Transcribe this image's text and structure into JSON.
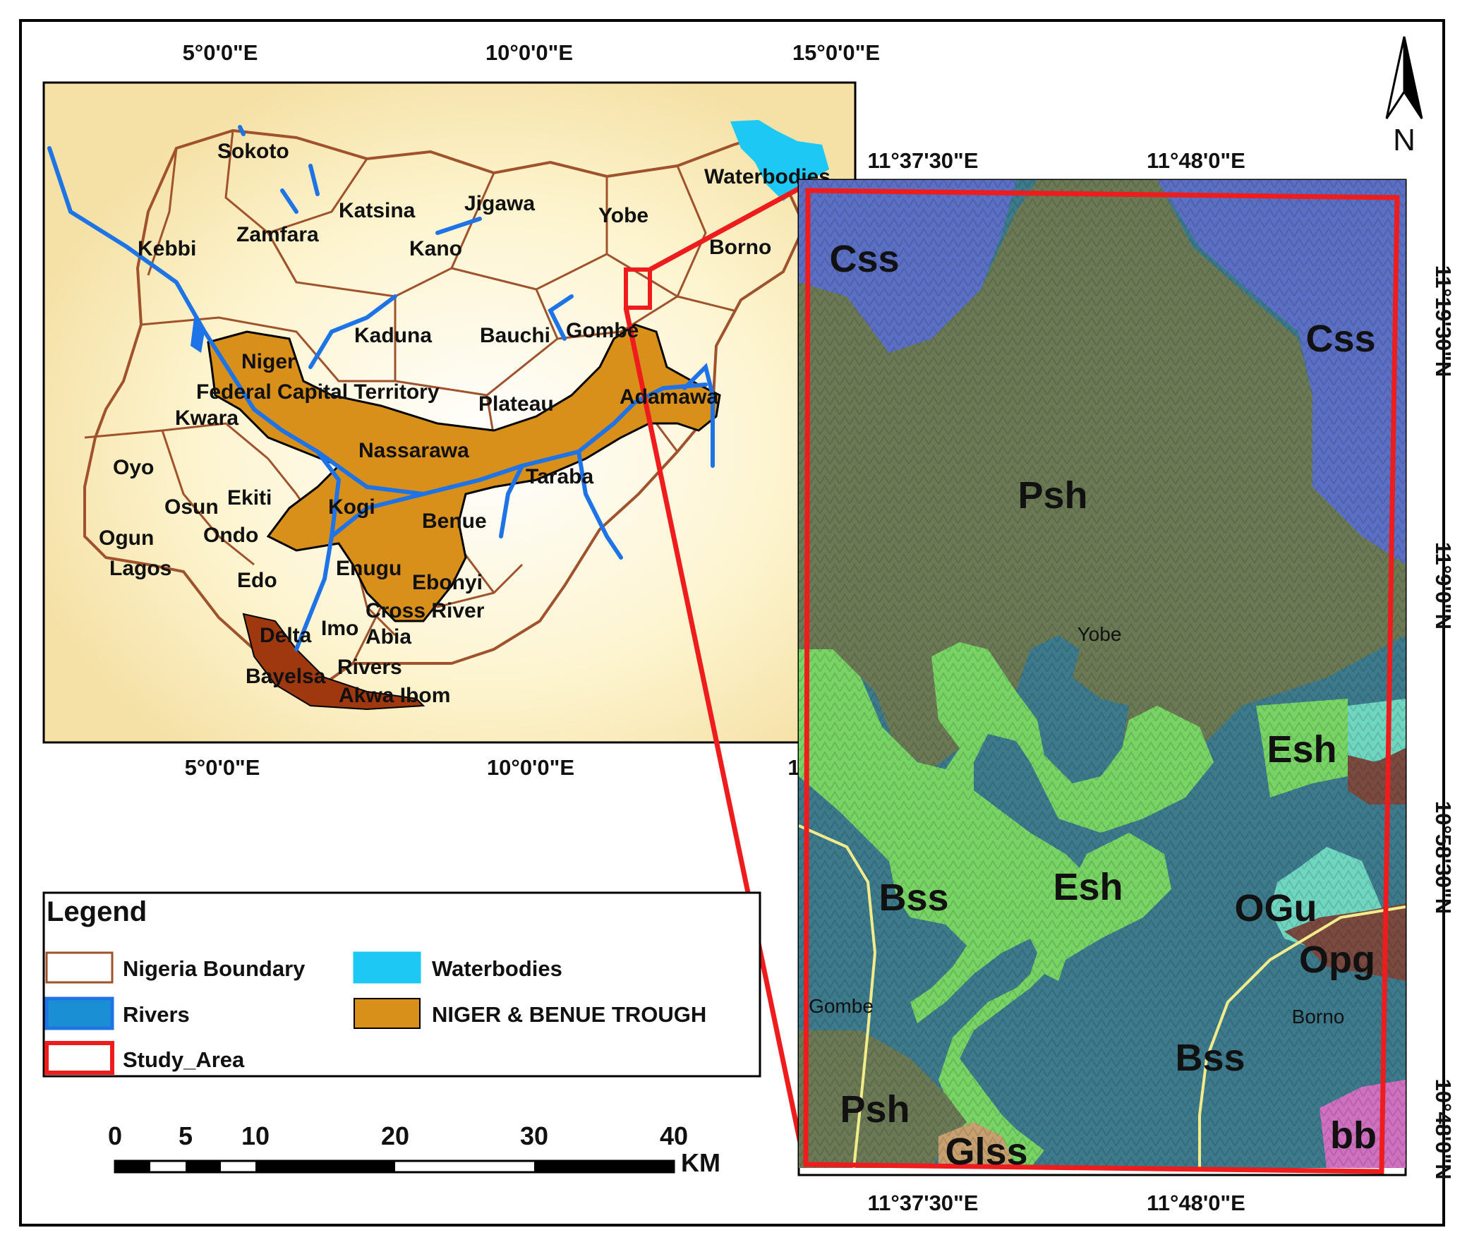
{
  "inset_map": {
    "top_ticks": [
      "5°0'0\"E",
      "10°0'0\"E",
      "15°0'0\"E"
    ],
    "bottom_ticks": [
      "5°0'0\"E",
      "10°0'0\"E",
      "1"
    ],
    "states": [
      "Sokoto",
      "Katsina",
      "Jigawa",
      "Yobe",
      "Waterbodies",
      "Kebbi",
      "Zamfara",
      "Kano",
      "Borno",
      "Kaduna",
      "Bauchi",
      "Gombe",
      "Niger",
      "Federal Capital Territory",
      "Plateau",
      "Adamawa",
      "Kwara",
      "Nassarawa",
      "Oyo",
      "Taraba",
      "Osun",
      "Ekiti",
      "Kogi",
      "Benue",
      "Ogun",
      "Ondo",
      "Lagos",
      "Edo",
      "Enugu",
      "Ebonyi",
      "Cross River",
      "Delta",
      "Imo",
      "Abia",
      "Rivers",
      "Bayelsa",
      "Akwa Ibom"
    ]
  },
  "north_arrow": {
    "label": "N"
  },
  "study_map": {
    "top_ticks": [
      "11°37'30\"E",
      "11°48'0\"E"
    ],
    "bottom_ticks": [
      "11°37'30\"E",
      "11°48'0\"E"
    ],
    "right_ticks": [
      "11°19'30\"N",
      "11°9'0\"N",
      "10°58'30\"N",
      "10°48'0\"N"
    ],
    "units": [
      "Css",
      "Css",
      "Psh",
      "Esh",
      "Esh",
      "Bss",
      "Bss",
      "OGu",
      "Opg",
      "Psh",
      "Glss",
      "bb"
    ],
    "place_labels": [
      "Yobe",
      "Gombe",
      "Borno"
    ]
  },
  "legend": {
    "title": "Legend",
    "items": [
      "Nigeria Boundary",
      "Waterbodies",
      "Rivers",
      "NIGER & BENUE TROUGH",
      "Study_Area"
    ]
  },
  "scale_bar": {
    "labels": [
      "0",
      "5",
      "10",
      "20",
      "30",
      "40"
    ],
    "unit": "KM"
  },
  "colors": {
    "boundary": "#a0522d",
    "river": "#1e73e6",
    "waterbody": "#1ec8f5",
    "trough": "#d9901a",
    "study_area": "#ee1c1c",
    "Css": "#5b6fc4",
    "Psh": "#6b7a55",
    "Esh": "#78d464",
    "Bss": "#3c7a8c",
    "OGu": "#6fd6c0",
    "Opg": "#7a4a40",
    "bb": "#d070c0"
  }
}
